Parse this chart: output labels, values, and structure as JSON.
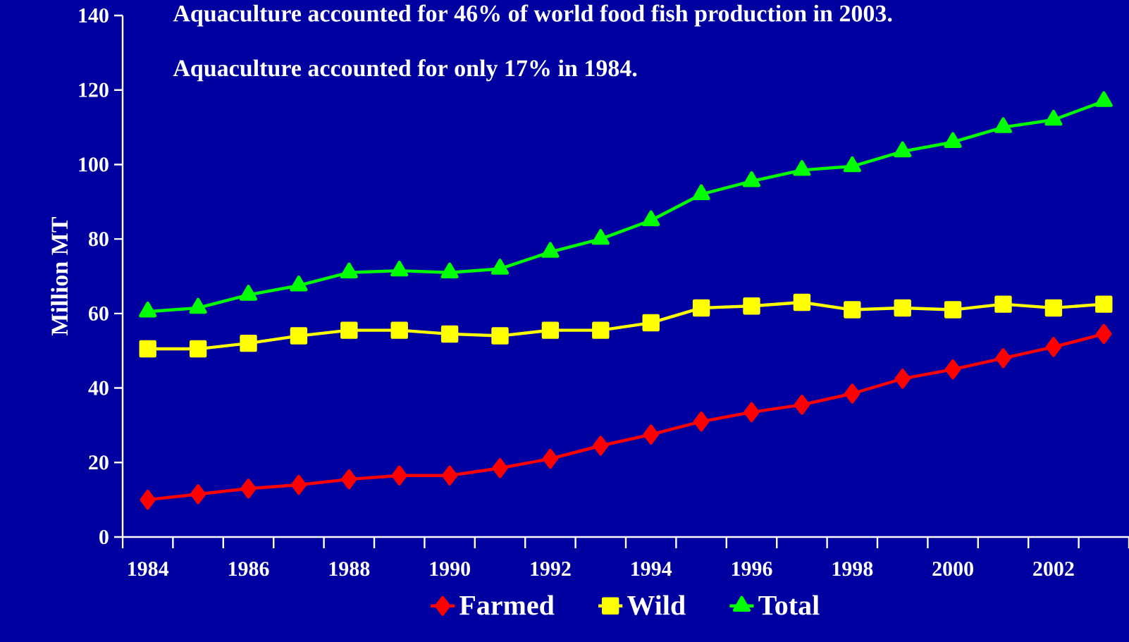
{
  "chart_data": {
    "type": "line",
    "annotations": [
      "Aquaculture accounted for 46% of world food fish production in 2003.",
      "Aquaculture accounted for only 17% in 1984."
    ],
    "ylabel": "Million MT",
    "categories": [
      "1984",
      null,
      "1986",
      null,
      "1988",
      null,
      "1990",
      null,
      "1992",
      null,
      "1994",
      null,
      "1996",
      null,
      "1998",
      null,
      "2000",
      null,
      "2002",
      null
    ],
    "series": [
      {
        "name": "Farmed",
        "color": "#ff0000",
        "marker": "diamond",
        "values": [
          10,
          11.5,
          13,
          14,
          15.5,
          16.5,
          16.5,
          18.5,
          21,
          24.5,
          27.5,
          31,
          33.5,
          35.5,
          38.5,
          42.5,
          45,
          48,
          51,
          54.5
        ]
      },
      {
        "name": "Wild",
        "color": "#ffff00",
        "marker": "square",
        "values": [
          50.5,
          50.5,
          52,
          54,
          55.5,
          55.5,
          54.5,
          54,
          55.5,
          55.5,
          57.5,
          61.5,
          62,
          63,
          61,
          61.5,
          61,
          62.5,
          61.5,
          62.5
        ]
      },
      {
        "name": "Total",
        "color": "#00ff00",
        "marker": "triangle",
        "values": [
          60.5,
          61.5,
          65,
          67.5,
          71,
          71.5,
          71,
          72,
          76.5,
          80,
          85,
          92,
          95.5,
          98.5,
          99.5,
          103.5,
          106,
          110,
          112,
          117
        ]
      }
    ],
    "ylim": [
      0,
      140
    ],
    "yticks": [
      0,
      20,
      40,
      60,
      80,
      100,
      120,
      140
    ],
    "grid": false,
    "legend": "bottom",
    "line_style": "solid"
  }
}
